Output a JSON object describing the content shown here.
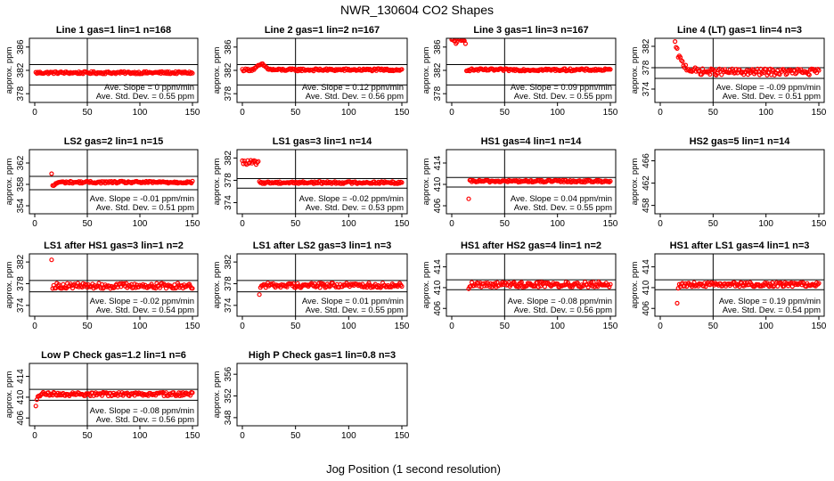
{
  "figure": {
    "title": "NWR_130604  CO2 Shapes",
    "xlabel": "Jog Position (1 second resolution)"
  },
  "chart_data": [
    {
      "type": "scatter",
      "title": "Line 1 gas=1 lin=1 n=168",
      "ylabel": "approx. ppm",
      "xlim": [
        0,
        150
      ],
      "xticks": [
        0,
        50,
        100,
        150
      ],
      "yticks": [
        378,
        382,
        386
      ],
      "ylim": [
        376.5,
        387.5
      ],
      "hlines": [
        383,
        379.5
      ],
      "vline": 50,
      "annotations": [
        "Ave. Slope = 0 ppm/min",
        "Ave. Std. Dev. = 0.55 ppm"
      ],
      "series": [
        {
          "color": "#ff0000",
          "shape": "flat",
          "x_start": 0,
          "x_end": 150,
          "level": 381.6,
          "noise": 0.2
        }
      ]
    },
    {
      "type": "scatter",
      "title": "Line 2 gas=1 lin=2 n=167",
      "ylabel": "approx. ppm",
      "xlim": [
        0,
        150
      ],
      "xticks": [
        0,
        50,
        100,
        150
      ],
      "yticks": [
        378,
        382,
        386
      ],
      "ylim": [
        376.5,
        387.5
      ],
      "hlines": [
        383,
        379.5
      ],
      "vline": 50,
      "annotations": [
        "Ave. Slope = 0.12 ppm/min",
        "Ave. Std. Dev. = 0.56 ppm"
      ],
      "series": [
        {
          "color": "#ff0000",
          "shape": "bump",
          "x_start": 0,
          "x_end": 150,
          "level": 382.1,
          "noise": 0.2,
          "bump_x": 18,
          "bump_height": 0.9
        }
      ]
    },
    {
      "type": "scatter",
      "title": "Line 3 gas=1 lin=3 n=167",
      "ylabel": "approx. ppm",
      "xlim": [
        0,
        150
      ],
      "xticks": [
        0,
        50,
        100,
        150
      ],
      "yticks": [
        378,
        382,
        386
      ],
      "ylim": [
        376.5,
        387.5
      ],
      "hlines": [
        383,
        379.5
      ],
      "vline": 50,
      "annotations": [
        "Ave. Slope = 0.09 ppm/min",
        "Ave. Std. Dev. = 0.55 ppm"
      ],
      "series": [
        {
          "color": "#ff0000",
          "shape": "highstart",
          "x_start": 0,
          "x_end": 150,
          "level": 382.1,
          "noise": 0.2,
          "start_x": 0,
          "start_level": 387,
          "drop_x": 14,
          "start_noise": 0.5
        }
      ]
    },
    {
      "type": "scatter",
      "title": "Line 4 (LT) gas=1 lin=4 n=3",
      "ylabel": "approx. ppm",
      "xlim": [
        0,
        150
      ],
      "xticks": [
        0,
        50,
        100,
        150
      ],
      "yticks": [
        374,
        378,
        382
      ],
      "ylim": [
        371.5,
        383.5
      ],
      "hlines": [
        378,
        376
      ],
      "vline": 50,
      "annotations": [
        "Ave. Slope = -0.09 ppm/min",
        "Ave. Std. Dev. = 0.51 ppm"
      ],
      "series": [
        {
          "color": "#ff0000",
          "shape": "decay",
          "x_start": 14,
          "x_end": 150,
          "level": 377.2,
          "noise": 0.6,
          "start_level": 382.5,
          "tau": 6
        }
      ]
    },
    {
      "type": "scatter",
      "title": "LS2 gas=2 lin=1 n=15",
      "ylabel": "approx. ppm",
      "xlim": [
        0,
        150
      ],
      "xticks": [
        0,
        50,
        100,
        150
      ],
      "yticks": [
        354,
        358,
        362
      ],
      "ylim": [
        352.5,
        364.5
      ],
      "hlines": [
        359.5,
        357
      ],
      "vline": 50,
      "annotations": [
        "Ave. Slope = -0.01 ppm/min",
        "Ave. Std. Dev. = 0.51 ppm"
      ],
      "series": [
        {
          "color": "#ff0000",
          "shape": "flat",
          "x_start": 16,
          "x_end": 150,
          "level": 358.4,
          "noise": 0.2,
          "first_point": 360,
          "dip": -0.9
        }
      ]
    },
    {
      "type": "scatter",
      "title": "LS1 gas=3 lin=1 n=14",
      "ylabel": "approx. ppm",
      "xlim": [
        0,
        150
      ],
      "xticks": [
        0,
        50,
        100,
        150
      ],
      "yticks": [
        374,
        378,
        382
      ],
      "ylim": [
        372,
        383.5
      ],
      "hlines": [
        378.3,
        376.6
      ],
      "vline": 50,
      "annotations": [
        "Ave. Slope = -0.02 ppm/min",
        "Ave. Std. Dev. = 0.53 ppm"
      ],
      "series": [
        {
          "color": "#ff0000",
          "shape": "highstart",
          "x_start": 0,
          "x_end": 150,
          "level": 377.6,
          "noise": 0.2,
          "start_x": 0,
          "start_level": 381.2,
          "drop_x": 16,
          "start_noise": 0.4
        }
      ]
    },
    {
      "type": "scatter",
      "title": "HS1 gas=4 lin=1 n=14",
      "ylabel": "approx. ppm",
      "xlim": [
        0,
        150
      ],
      "xticks": [
        0,
        50,
        100,
        150
      ],
      "yticks": [
        406,
        410,
        414
      ],
      "ylim": [
        404.5,
        416.5
      ],
      "hlines": [
        411.3,
        409.5
      ],
      "vline": 50,
      "annotations": [
        "Ave. Slope = 0.04 ppm/min",
        "Ave. Std. Dev. = 0.55 ppm"
      ],
      "series": [
        {
          "color": "#ff0000",
          "shape": "flat",
          "x_start": 16,
          "x_end": 150,
          "level": 410.6,
          "noise": 0.2,
          "first_point": 407.3,
          "dip": 0
        }
      ]
    },
    {
      "type": "scatter",
      "title": "HS2 gas=5 lin=1 n=14",
      "ylabel": "approx. ppm",
      "xlim": [
        0,
        150
      ],
      "xticks": [
        0,
        50,
        100,
        150
      ],
      "yticks": [
        458,
        462,
        466
      ],
      "ylim": [
        456.5,
        468
      ]
    },
    {
      "type": "scatter",
      "title": "LS1 after HS1 gas=3 lin=1 n=2",
      "ylabel": "approx. ppm",
      "xlim": [
        0,
        150
      ],
      "xticks": [
        0,
        50,
        100,
        150
      ],
      "yticks": [
        374,
        378,
        382
      ],
      "ylim": [
        372,
        383.5
      ],
      "hlines": [
        378.6,
        376.5
      ],
      "vline": 50,
      "annotations": [
        "Ave. Slope = -0.02 ppm/min",
        "Ave. Std. Dev. = 0.54 ppm"
      ],
      "series": [
        {
          "color": "#ff0000",
          "shape": "flat",
          "x_start": 16,
          "x_end": 150,
          "level": 377.6,
          "noise": 0.5,
          "first_point": 382.4,
          "dip": 0
        }
      ]
    },
    {
      "type": "scatter",
      "title": "LS1 after LS2 gas=3 lin=1 n=3",
      "ylabel": "approx. ppm",
      "xlim": [
        0,
        150
      ],
      "xticks": [
        0,
        50,
        100,
        150
      ],
      "yticks": [
        374,
        378,
        382
      ],
      "ylim": [
        372,
        383.5
      ],
      "hlines": [
        378.6,
        376.5
      ],
      "vline": 50,
      "annotations": [
        "Ave. Slope = 0.01 ppm/min",
        "Ave. Std. Dev. = 0.55 ppm"
      ],
      "series": [
        {
          "color": "#ff0000",
          "shape": "flat",
          "x_start": 16,
          "x_end": 150,
          "level": 377.7,
          "noise": 0.45,
          "first_point": 376.0,
          "dip": 0
        }
      ]
    },
    {
      "type": "scatter",
      "title": "HS1 after HS2 gas=4 lin=1 n=2",
      "ylabel": "approx. ppm",
      "xlim": [
        0,
        150
      ],
      "xticks": [
        0,
        50,
        100,
        150
      ],
      "yticks": [
        406,
        410,
        414
      ],
      "ylim": [
        404.5,
        416.5
      ],
      "hlines": [
        411.5,
        409.6
      ],
      "vline": 50,
      "annotations": [
        "Ave. Slope = -0.08 ppm/min",
        "Ave. Std. Dev. = 0.56 ppm"
      ],
      "series": [
        {
          "color": "#ff0000",
          "shape": "flat",
          "x_start": 16,
          "x_end": 150,
          "level": 410.6,
          "noise": 0.5,
          "first_point": 409.8,
          "dip": 0
        }
      ]
    },
    {
      "type": "scatter",
      "title": "HS1 after LS1 gas=4 lin=1 n=3",
      "ylabel": "approx. ppm",
      "xlim": [
        0,
        150
      ],
      "xticks": [
        0,
        50,
        100,
        150
      ],
      "yticks": [
        406,
        410,
        414
      ],
      "ylim": [
        404.5,
        416.5
      ],
      "hlines": [
        411.5,
        409.6
      ],
      "vline": 50,
      "annotations": [
        "Ave. Slope = 0.19 ppm/min",
        "Ave. Std. Dev. = 0.54 ppm"
      ],
      "series": [
        {
          "color": "#ff0000",
          "shape": "flat",
          "x_start": 16,
          "x_end": 150,
          "level": 410.6,
          "noise": 0.4,
          "first_point": 407.0,
          "dip": -0.5
        }
      ]
    },
    {
      "type": "scatter",
      "title": "Low P Check gas=1.2 lin=1 n=6",
      "ylabel": "approx. ppm",
      "xlim": [
        0,
        150
      ],
      "xticks": [
        0,
        50,
        100,
        150
      ],
      "yticks": [
        406,
        410,
        414
      ],
      "ylim": [
        404.5,
        416.5
      ],
      "hlines": [
        411.5,
        409.4
      ],
      "vline": 50,
      "annotations": [
        "Ave. Slope = -0.08 ppm/min",
        "Ave. Std. Dev. = 0.56 ppm"
      ],
      "series": [
        {
          "color": "#ff0000",
          "shape": "flat",
          "x_start": 1,
          "x_end": 150,
          "level": 410.6,
          "noise": 0.35,
          "first_point": 408.3,
          "dip": -1.0
        }
      ]
    },
    {
      "type": "scatter",
      "title": "High P Check gas=1 lin=0.8 n=3",
      "ylabel": "approx. ppm",
      "xlim": [
        0,
        150
      ],
      "xticks": [
        0,
        50,
        100,
        150
      ],
      "yticks": [
        348,
        352,
        356
      ],
      "ylim": [
        346.5,
        358
      ]
    }
  ]
}
